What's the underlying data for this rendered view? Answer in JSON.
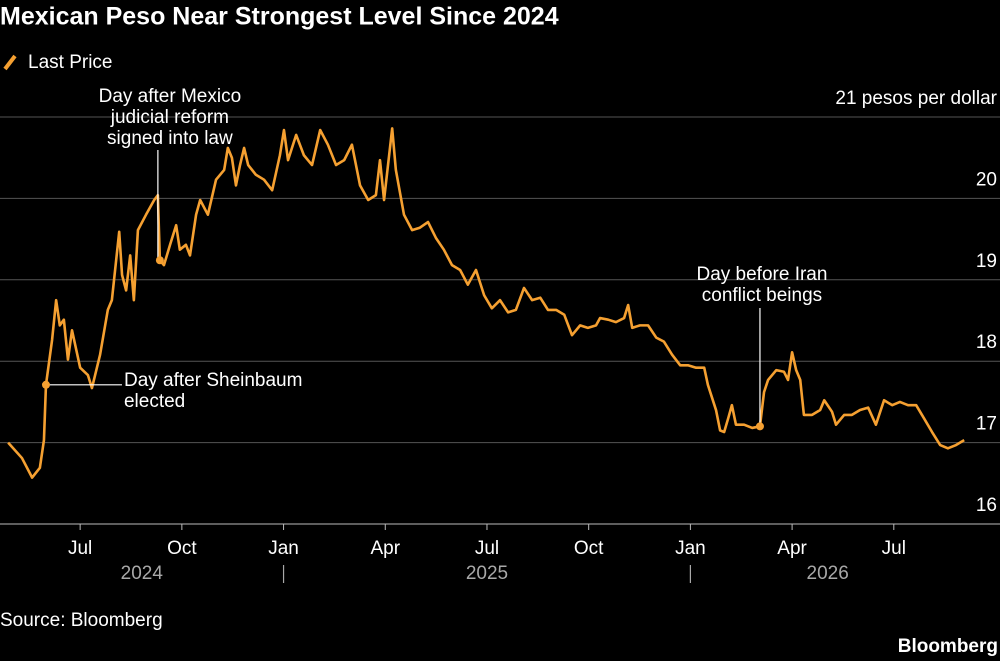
{
  "chart_data": {
    "type": "line",
    "title": "Mexican Peso Near Strongest Level Since 2024",
    "source": "Source: Bloomberg",
    "brand": "Bloomberg",
    "x": [
      2024.323,
      2024.357,
      2024.382,
      2024.401,
      2024.411,
      2024.416,
      2024.431,
      2024.441,
      2024.45,
      2024.46,
      2024.47,
      2024.48,
      2024.5,
      2024.519,
      2024.529,
      2024.549,
      2024.568,
      2024.578,
      2024.596,
      2024.603,
      2024.613,
      2024.623,
      2024.632,
      2024.642,
      2024.662,
      2024.682,
      2024.691,
      2024.696,
      2024.706,
      2024.721,
      2024.736,
      2024.745,
      2024.76,
      2024.77,
      2024.785,
      2024.795,
      2024.814,
      2024.834,
      2024.854,
      2024.863,
      2024.873,
      2024.883,
      2024.893,
      2024.903,
      2024.913,
      2024.932,
      2024.952,
      2024.972,
      2024.991,
      2025.001,
      2025.011,
      2025.031,
      2025.05,
      2025.07,
      2025.09,
      2025.109,
      2025.129,
      2025.149,
      2025.168,
      2025.188,
      2025.208,
      2025.227,
      2025.237,
      2025.247,
      2025.267,
      2025.276,
      2025.296,
      2025.316,
      2025.335,
      2025.355,
      2025.375,
      2025.394,
      2025.414,
      2025.434,
      2025.453,
      2025.473,
      2025.493,
      2025.512,
      2025.532,
      2025.552,
      2025.571,
      2025.591,
      2025.611,
      2025.631,
      2025.65,
      2025.67,
      2025.69,
      2025.709,
      2025.729,
      2025.748,
      2025.768,
      2025.778,
      2025.798,
      2025.817,
      2025.837,
      2025.847,
      2025.857,
      2025.876,
      2025.896,
      2025.916,
      2025.935,
      2025.955,
      2025.975,
      2025.994,
      2026.014,
      2026.034,
      2026.043,
      2026.063,
      2026.073,
      2026.083,
      2026.093,
      2026.102,
      2026.112,
      2026.132,
      2026.152,
      2026.171,
      2026.181,
      2026.191,
      2026.211,
      2026.23,
      2026.24,
      2026.25,
      2026.26,
      2026.27,
      2026.279,
      2026.299,
      2026.319,
      2026.329,
      2026.348,
      2026.358,
      2026.378,
      2026.397,
      2026.417,
      2026.437,
      2026.456,
      2026.476,
      2026.496,
      2026.515,
      2026.535,
      2026.555,
      2026.574,
      2026.594,
      2026.614,
      2026.633,
      2026.653,
      2026.673
    ],
    "series": [
      {
        "name": "Last Price",
        "color": "#f5a031",
        "values": [
          17.0,
          16.81,
          16.57,
          16.69,
          17.03,
          17.71,
          18.26,
          18.75,
          18.44,
          18.51,
          18.02,
          18.38,
          17.92,
          17.83,
          17.67,
          18.08,
          18.63,
          18.75,
          19.59,
          19.06,
          18.87,
          19.3,
          18.75,
          19.61,
          19.8,
          19.98,
          20.04,
          19.24,
          19.18,
          19.43,
          19.67,
          19.37,
          19.43,
          19.3,
          19.8,
          19.98,
          19.8,
          20.23,
          20.35,
          20.62,
          20.5,
          20.16,
          20.41,
          20.62,
          20.41,
          20.29,
          20.23,
          20.1,
          20.53,
          20.84,
          20.47,
          20.78,
          20.53,
          20.41,
          20.84,
          20.66,
          20.41,
          20.47,
          20.66,
          20.16,
          19.98,
          20.04,
          20.47,
          19.98,
          20.86,
          20.35,
          19.8,
          19.61,
          19.64,
          19.71,
          19.51,
          19.37,
          19.18,
          19.12,
          18.94,
          19.12,
          18.81,
          18.65,
          18.75,
          18.6,
          18.63,
          18.9,
          18.75,
          18.78,
          18.63,
          18.63,
          18.57,
          18.32,
          18.44,
          18.41,
          18.44,
          18.53,
          18.51,
          18.48,
          18.53,
          18.69,
          18.41,
          18.44,
          18.44,
          18.29,
          18.24,
          18.08,
          17.95,
          17.95,
          17.92,
          17.92,
          17.71,
          17.4,
          17.15,
          17.13,
          17.3,
          17.46,
          17.22,
          17.22,
          17.18,
          17.2,
          17.62,
          17.77,
          17.89,
          17.87,
          17.77,
          18.11,
          17.89,
          17.77,
          17.34,
          17.34,
          17.4,
          17.52,
          17.38,
          17.22,
          17.34,
          17.34,
          17.4,
          17.43,
          17.22,
          17.52,
          17.46,
          17.5,
          17.46,
          17.46,
          17.3,
          17.13,
          16.97,
          16.93,
          16.97,
          17.03
        ]
      }
    ],
    "xlim": [
      2024.303,
      2026.675
    ],
    "xticks": [
      {
        "value": 2024.5,
        "label": "Jul"
      },
      {
        "value": 2024.75,
        "label": "Oct"
      },
      {
        "value": 2025,
        "label": "Jan"
      },
      {
        "value": 2025.25,
        "label": "Apr"
      },
      {
        "value": 2025.5,
        "label": "Jul"
      },
      {
        "value": 2025.75,
        "label": "Oct"
      },
      {
        "value": 2026,
        "label": "Jan"
      },
      {
        "value": 2026.25,
        "label": "Apr"
      },
      {
        "value": 2026.5,
        "label": "Jul"
      }
    ],
    "years": [
      "2024",
      "2025",
      "2026"
    ],
    "ylim": [
      16,
      21
    ],
    "yticks": [
      16,
      17,
      18,
      19,
      20,
      {
        "value": 21,
        "label": "21 pesos per dollar"
      }
    ],
    "grid": true,
    "legend": "top-left",
    "annotations": [
      {
        "lines": [
          "Day after Sheinbaum",
          "elected"
        ],
        "x": 2024.416,
        "y": 17.71
      },
      {
        "lines": [
          "Day after Mexico",
          "judicial reform",
          "signed into law"
        ],
        "x": 2024.696,
        "y": 19.24
      },
      {
        "lines": [
          "Day before Iran",
          "conflict beings"
        ],
        "x": 2026.171,
        "y": 17.2
      }
    ]
  }
}
